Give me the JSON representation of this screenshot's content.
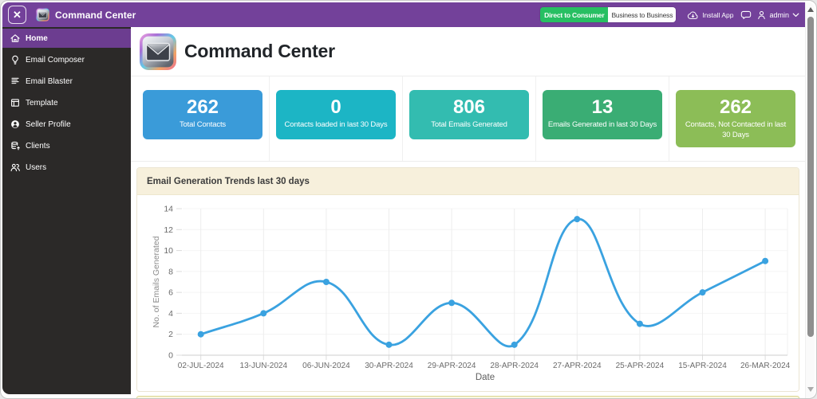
{
  "titlebar": {
    "close_label": "✕",
    "app_title": "Command Center",
    "segment_d2c": "Direct to Consumer",
    "segment_b2b": "Business to Business",
    "install_label": "Install App",
    "user_label": "admin"
  },
  "sidebar": {
    "items": [
      {
        "icon": "home-icon",
        "label": "Home",
        "active": true
      },
      {
        "icon": "email-composer-icon",
        "label": "Email Composer",
        "active": false
      },
      {
        "icon": "email-blaster-icon",
        "label": "Email Blaster",
        "active": false
      },
      {
        "icon": "template-icon",
        "label": "Template",
        "active": false
      },
      {
        "icon": "seller-profile-icon",
        "label": "Seller Profile",
        "active": false
      },
      {
        "icon": "clients-icon",
        "label": "Clients",
        "active": false
      },
      {
        "icon": "users-icon",
        "label": "Users",
        "active": false
      }
    ]
  },
  "main": {
    "page_title": "Command Center",
    "stats": [
      {
        "value": "262",
        "label": "Total Contacts",
        "color": "#3a9bd9"
      },
      {
        "value": "0",
        "label": "Contacts loaded in last 30 Days",
        "color": "#1cb5c5"
      },
      {
        "value": "806",
        "label": "Total Emails Generated",
        "color": "#33bcb0"
      },
      {
        "value": "13",
        "label": "Emails Generated in last 30 Days",
        "color": "#3aad74"
      },
      {
        "value": "262",
        "label": "Contacts, Not Contacted in last 30 Days",
        "color": "#8cbd57"
      }
    ],
    "panel_title": "Email Generation Trends last 30 days"
  },
  "chart_data": {
    "type": "line",
    "title": "Email Generation Trends last 30 days",
    "categories": [
      "02-JUL-2024",
      "13-JUN-2024",
      "06-JUN-2024",
      "30-APR-2024",
      "29-APR-2024",
      "28-APR-2024",
      "27-APR-2024",
      "25-APR-2024",
      "15-APR-2024",
      "26-MAR-2024"
    ],
    "values": [
      2,
      4,
      7,
      1,
      5,
      1,
      13,
      3,
      6,
      9
    ],
    "xlabel": "Date",
    "ylabel": "No. of Emails Generated",
    "ylim": [
      0,
      14
    ],
    "ytick_step": 2,
    "line_color": "#3aa2e0",
    "point_radius": 4,
    "line_tension": 0.4,
    "grid": true,
    "legend_position": "none"
  }
}
